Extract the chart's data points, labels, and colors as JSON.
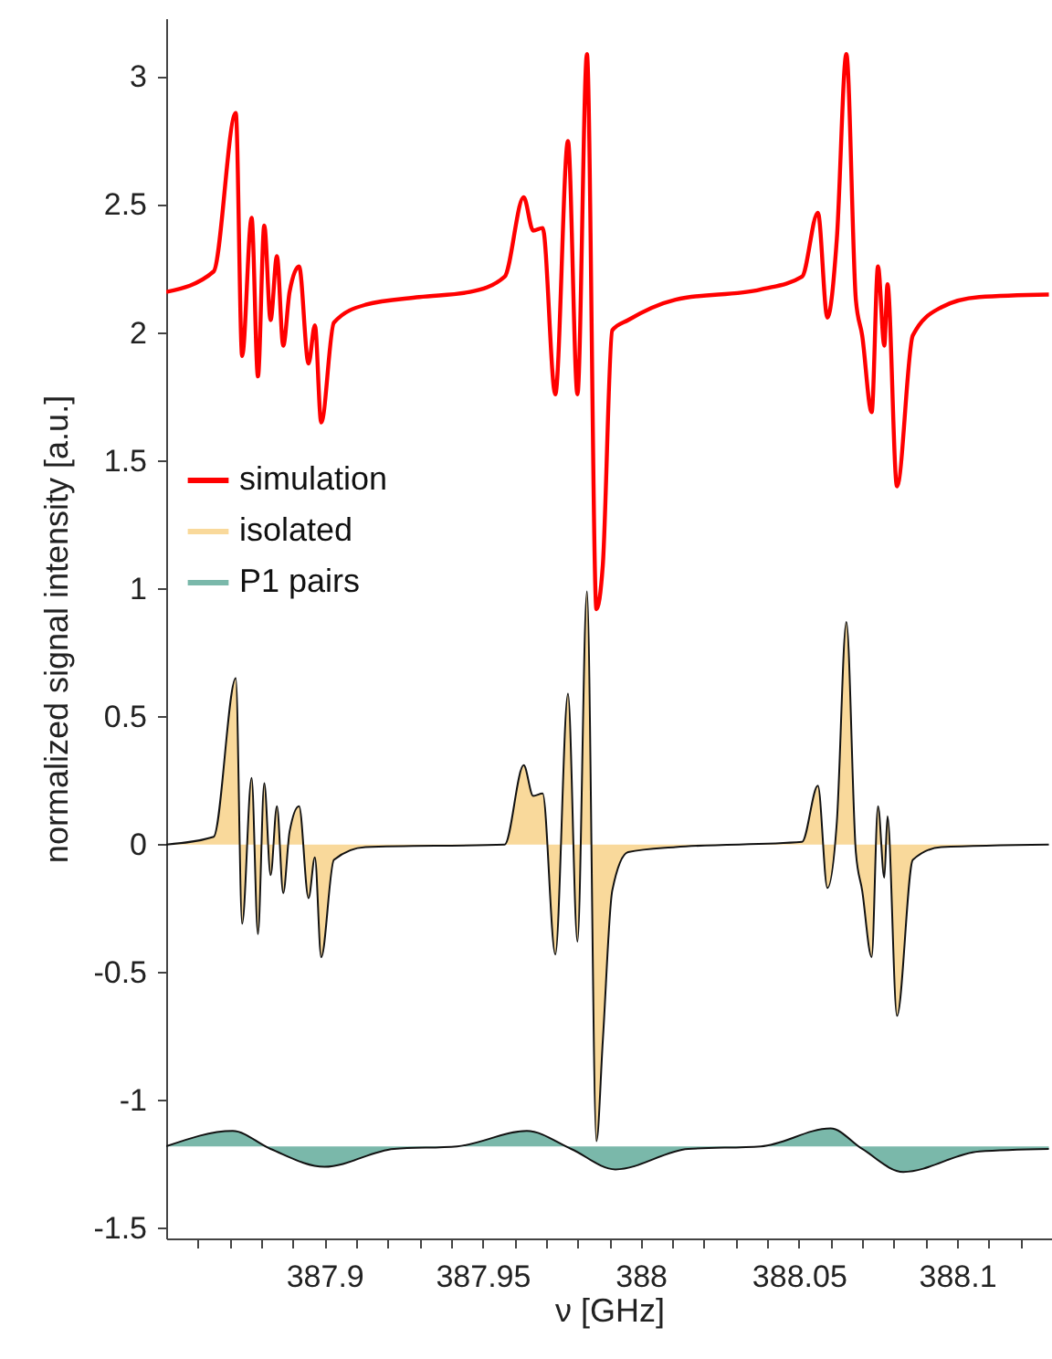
{
  "chart_data": {
    "type": "line",
    "xlabel": "ν [GHz]",
    "ylabel": "normalized signal intensity [a.u.]",
    "xlim": [
      387.85,
      388.13
    ],
    "ylim": [
      -1.54,
      3.23
    ],
    "xticks": [
      {
        "value": 387.86,
        "label": null
      },
      {
        "value": 387.87,
        "label": null
      },
      {
        "value": 387.88,
        "label": null
      },
      {
        "value": 387.89,
        "label": null
      },
      387.9,
      {
        "value": 387.91,
        "label": null
      },
      {
        "value": 387.92,
        "label": null
      },
      {
        "value": 387.93,
        "label": null
      },
      {
        "value": 387.94,
        "label": null
      },
      387.95,
      {
        "value": 387.96,
        "label": null
      },
      {
        "value": 387.97,
        "label": null
      },
      {
        "value": 387.98,
        "label": null
      },
      {
        "value": 387.99,
        "label": null
      },
      388,
      {
        "value": 388.01,
        "label": null
      },
      {
        "value": 388.02,
        "label": null
      },
      {
        "value": 388.03,
        "label": null
      },
      {
        "value": 388.04,
        "label": null
      },
      388.05,
      {
        "value": 388.06,
        "label": null
      },
      {
        "value": 388.07,
        "label": null
      },
      {
        "value": 388.08,
        "label": null
      },
      {
        "value": 388.09,
        "label": null
      },
      388.1,
      {
        "value": 388.11,
        "label": null
      },
      {
        "value": 388.12,
        "label": null
      }
    ],
    "yticks": [
      -1.5,
      -1,
      -0.5,
      0,
      0.5,
      1,
      1.5,
      2,
      2.5,
      3
    ],
    "grid": false,
    "legend": "left",
    "series": [
      {
        "name": "simulation",
        "color": "#ff0000",
        "x": [
          387.85,
          387.865,
          387.872,
          387.874,
          387.877,
          387.879,
          387.881,
          387.883,
          387.885,
          387.887,
          387.889,
          387.892,
          387.895,
          387.897,
          387.899,
          387.903,
          387.913,
          387.93,
          387.946,
          387.957,
          387.963,
          387.966,
          387.969,
          387.973,
          387.977,
          387.98,
          387.983,
          387.986,
          387.988,
          387.991,
          387.996,
          388.011,
          388.038,
          388.051,
          388.056,
          388.059,
          388.062,
          388.065,
          388.068,
          388.07,
          388.073,
          388.075,
          388.077,
          388.078,
          388.081,
          388.086,
          388.095,
          388.107,
          388.129
        ],
        "values": [
          2.16,
          2.24,
          2.86,
          1.91,
          2.45,
          1.83,
          2.42,
          2.05,
          2.3,
          1.95,
          2.16,
          2.26,
          1.88,
          2.03,
          1.65,
          2.04,
          2.11,
          2.14,
          2.16,
          2.22,
          2.53,
          2.4,
          2.41,
          1.76,
          2.75,
          1.76,
          3.09,
          0.92,
          1.09,
          2.01,
          2.05,
          2.13,
          2.17,
          2.22,
          2.47,
          2.06,
          2.37,
          3.09,
          2.13,
          1.99,
          1.69,
          2.26,
          1.95,
          2.19,
          1.4,
          1.99,
          2.1,
          2.14,
          2.15
        ]
      },
      {
        "name": "isolated",
        "type": "area",
        "color": "#f9d99b",
        "x": [
          387.85,
          387.865,
          387.872,
          387.874,
          387.877,
          387.879,
          387.881,
          387.883,
          387.885,
          387.887,
          387.889,
          387.892,
          387.895,
          387.897,
          387.899,
          387.903,
          387.913,
          387.957,
          387.963,
          387.966,
          387.969,
          387.973,
          387.977,
          387.98,
          387.983,
          387.986,
          387.988,
          387.991,
          387.996,
          388.011,
          388.051,
          388.056,
          388.059,
          388.062,
          388.065,
          388.068,
          388.07,
          388.073,
          388.075,
          388.077,
          388.078,
          388.081,
          388.086,
          388.095,
          388.129
        ],
        "values": [
          0,
          0.03,
          0.65,
          -0.31,
          0.26,
          -0.35,
          0.24,
          -0.12,
          0.15,
          -0.19,
          0.05,
          0.15,
          -0.21,
          -0.05,
          -0.44,
          -0.06,
          -0.01,
          0,
          0.31,
          0.19,
          0.2,
          -0.43,
          0.59,
          -0.38,
          0.99,
          -1.16,
          -0.77,
          -0.18,
          -0.03,
          -0.01,
          0.01,
          0.23,
          -0.17,
          0.09,
          0.87,
          -0.03,
          -0.18,
          -0.44,
          0.15,
          -0.13,
          0.11,
          -0.67,
          -0.06,
          -0.01,
          0
        ]
      },
      {
        "name": "P1 pairs",
        "type": "area",
        "color": "#7ab8aa",
        "x": [
          387.85,
          387.871,
          387.883,
          387.9,
          387.922,
          387.942,
          387.964,
          387.978,
          387.992,
          388.015,
          388.038,
          388.06,
          388.07,
          388.083,
          388.107,
          388.129
        ],
        "values": [
          -1.18,
          -1.12,
          -1.19,
          -1.26,
          -1.19,
          -1.18,
          -1.12,
          -1.19,
          -1.27,
          -1.19,
          -1.18,
          -1.11,
          -1.19,
          -1.28,
          -1.2,
          -1.19
        ]
      }
    ]
  }
}
